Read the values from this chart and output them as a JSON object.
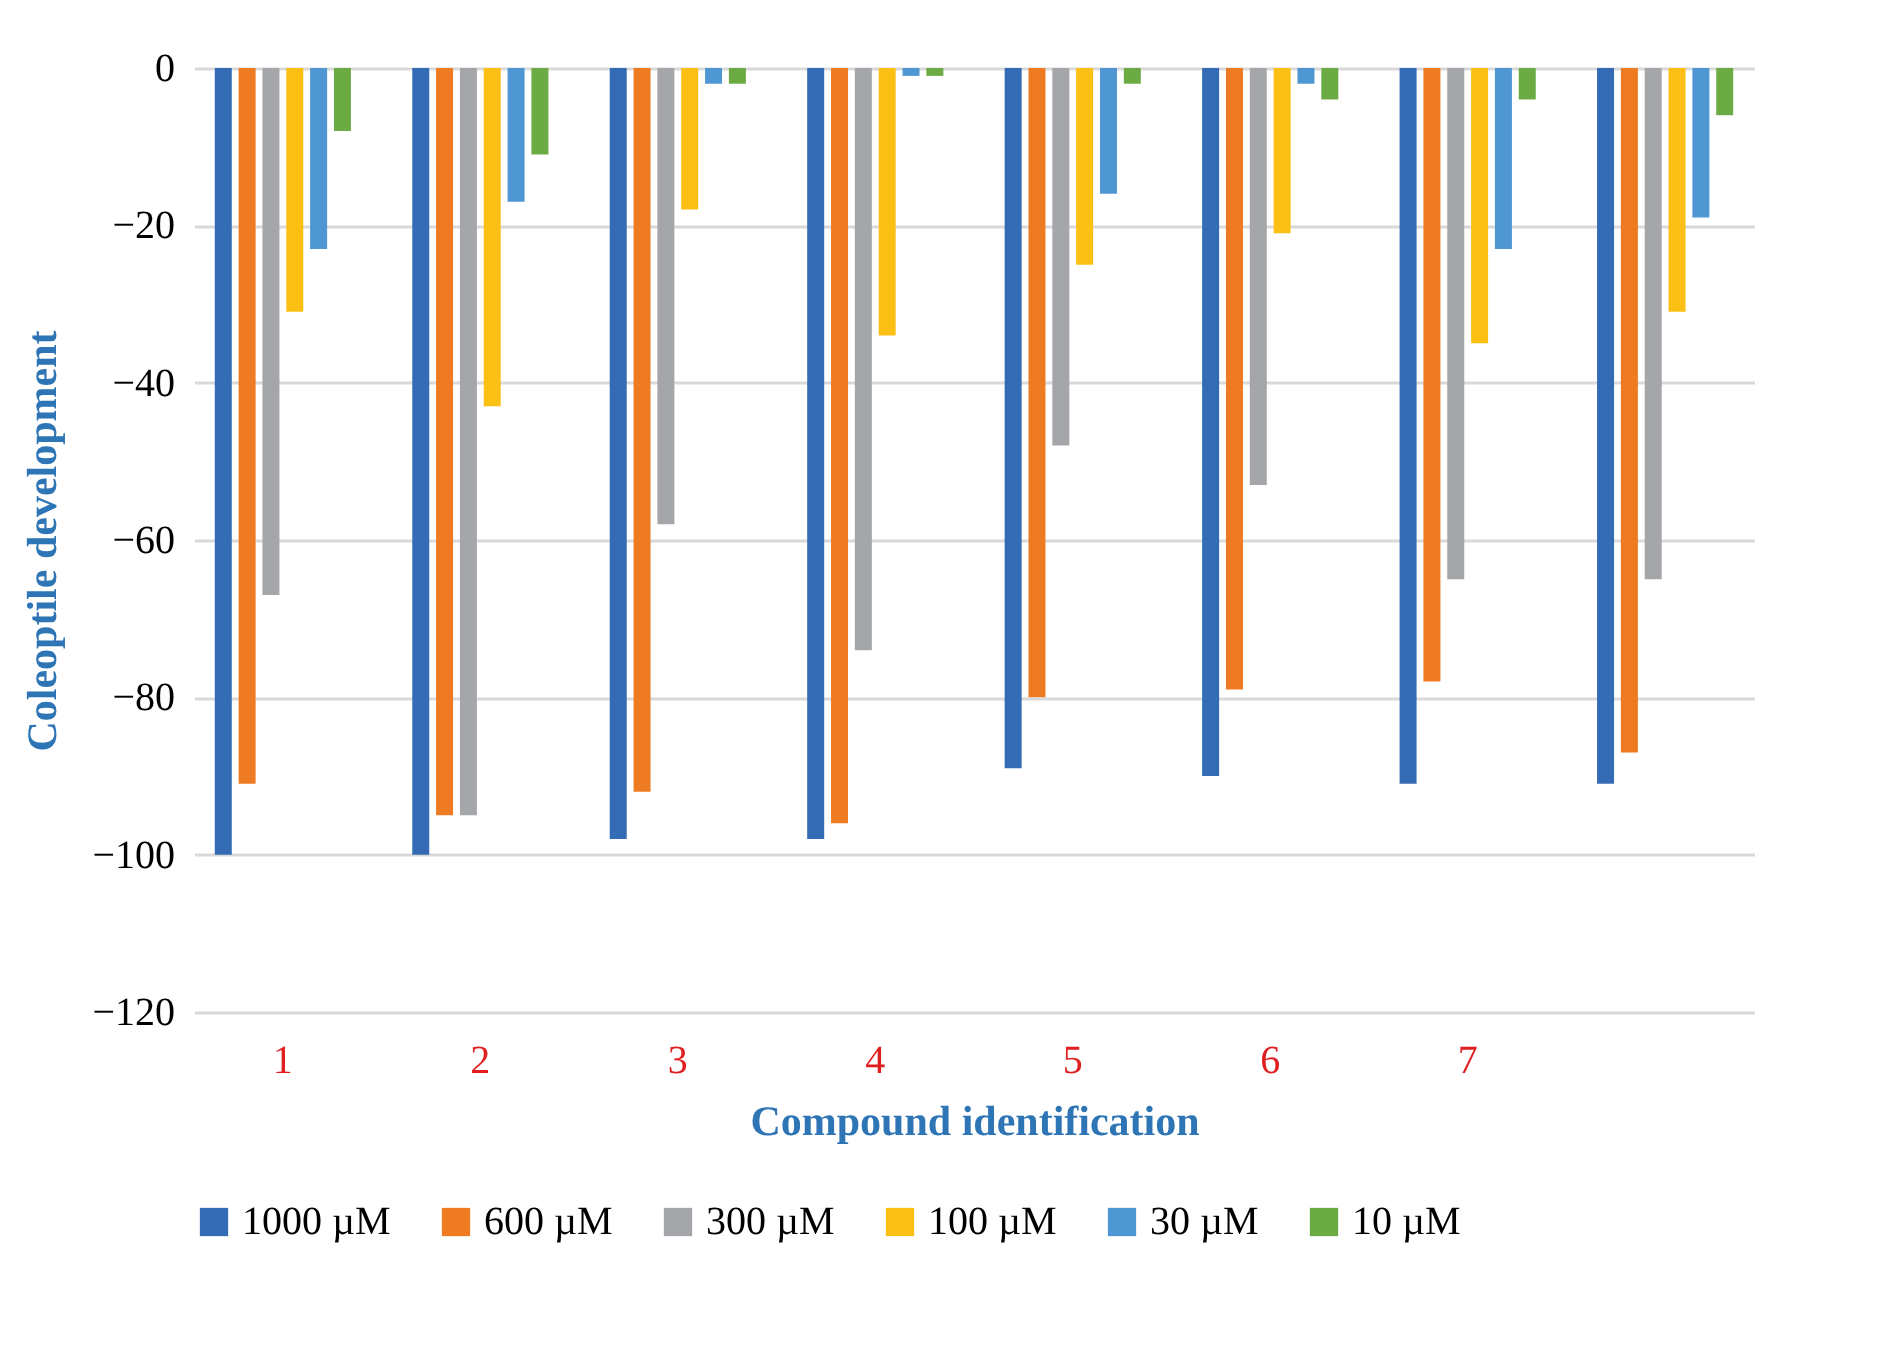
{
  "chart_data": {
    "type": "bar",
    "xlabel": "Compound identification",
    "ylabel": "Coleoptile development",
    "categories": [
      "1",
      "2",
      "3",
      "4",
      "5",
      "6",
      "7",
      null
    ],
    "series": [
      {
        "name": "1000 µM",
        "color": "#336bb5",
        "values": [
          -100,
          -100,
          -98,
          -98,
          -89,
          -90,
          -91,
          -91
        ]
      },
      {
        "name": "600 µM",
        "color": "#ee7b22",
        "values": [
          -91,
          -95,
          -92,
          -96,
          -80,
          -79,
          -78,
          -87
        ]
      },
      {
        "name": "300 µM",
        "color": "#a5a6aa",
        "values": [
          -67,
          -95,
          -58,
          -74,
          -48,
          -53,
          -65,
          -65
        ]
      },
      {
        "name": "100 µM",
        "color": "#fcc015",
        "values": [
          -31,
          -43,
          -18,
          -34,
          -25,
          -21,
          -35,
          -31
        ]
      },
      {
        "name": "30 µM",
        "color": "#4f97d3",
        "values": [
          -23,
          -17,
          -2,
          -1,
          -16,
          -2,
          -23,
          -19
        ]
      },
      {
        "name": "10 µM",
        "color": "#6cab44",
        "values": [
          -8,
          -11,
          -2,
          -1,
          -2,
          -4,
          -4,
          -6
        ]
      }
    ],
    "ylim": [
      -120,
      0
    ],
    "yticks": [
      -120,
      -100,
      -80,
      -60,
      -40,
      -20,
      0
    ],
    "grid": "y",
    "legend": "bottom"
  }
}
